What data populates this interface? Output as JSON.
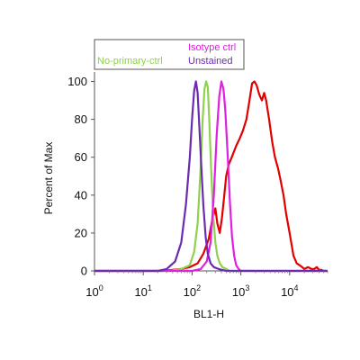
{
  "chart_data": {
    "type": "line",
    "xlabel": "BL1-H",
    "ylabel": "Percent of Max",
    "x_scale": "log",
    "xlim": [
      1,
      60000
    ],
    "ylim": [
      0,
      105
    ],
    "y_ticks": [
      0,
      20,
      40,
      60,
      80,
      100
    ],
    "x_ticks": [
      {
        "value": 1,
        "base": "10",
        "exp": "0"
      },
      {
        "value": 10,
        "base": "10",
        "exp": "1"
      },
      {
        "value": 100,
        "base": "10",
        "exp": "2"
      },
      {
        "value": 1000,
        "base": "10",
        "exp": "3"
      },
      {
        "value": 10000,
        "base": "10",
        "exp": "4"
      }
    ],
    "legend": {
      "placement": "top",
      "entries": [
        {
          "label": "No-primary-ctrl",
          "color": "#8fd14f"
        },
        {
          "label": "Isotype ctrl",
          "color": "#e020e0"
        },
        {
          "label": "Unstained",
          "color": "#6a2bb0"
        }
      ]
    },
    "series": [
      {
        "color": "#e00000",
        "points": [
          [
            1,
            0
          ],
          [
            15,
            0
          ],
          [
            25,
            0
          ],
          [
            40,
            0.5
          ],
          [
            60,
            1
          ],
          [
            90,
            2
          ],
          [
            130,
            4
          ],
          [
            170,
            9
          ],
          [
            220,
            17
          ],
          [
            260,
            27
          ],
          [
            300,
            33
          ],
          [
            330,
            25
          ],
          [
            370,
            20
          ],
          [
            410,
            28
          ],
          [
            450,
            38
          ],
          [
            500,
            50
          ],
          [
            560,
            56
          ],
          [
            650,
            60
          ],
          [
            800,
            66
          ],
          [
            950,
            70
          ],
          [
            1100,
            74
          ],
          [
            1300,
            80
          ],
          [
            1500,
            90
          ],
          [
            1700,
            99
          ],
          [
            1900,
            100
          ],
          [
            2100,
            98
          ],
          [
            2400,
            93
          ],
          [
            2700,
            90
          ],
          [
            3000,
            94
          ],
          [
            3300,
            90
          ],
          [
            3800,
            80
          ],
          [
            4400,
            68
          ],
          [
            5000,
            60
          ],
          [
            5800,
            54
          ],
          [
            6500,
            48
          ],
          [
            7500,
            40
          ],
          [
            8500,
            30
          ],
          [
            10000,
            20
          ],
          [
            12000,
            8
          ],
          [
            14000,
            4
          ],
          [
            16000,
            3
          ],
          [
            18000,
            2
          ],
          [
            20000,
            1
          ],
          [
            24000,
            2
          ],
          [
            28000,
            1
          ],
          [
            32000,
            1
          ],
          [
            36000,
            2
          ],
          [
            40000,
            0.5
          ],
          [
            45000,
            0.5
          ],
          [
            50000,
            0
          ],
          [
            55000,
            0
          ]
        ]
      },
      {
        "name": "No-primary-ctrl",
        "color": "#8fd14f",
        "points": [
          [
            1,
            0
          ],
          [
            35,
            0
          ],
          [
            60,
            1
          ],
          [
            90,
            3
          ],
          [
            110,
            10
          ],
          [
            130,
            25
          ],
          [
            150,
            55
          ],
          [
            165,
            80
          ],
          [
            180,
            96
          ],
          [
            195,
            100
          ],
          [
            210,
            97
          ],
          [
            225,
            80
          ],
          [
            245,
            55
          ],
          [
            270,
            30
          ],
          [
            300,
            15
          ],
          [
            330,
            8
          ],
          [
            370,
            4
          ],
          [
            420,
            2
          ],
          [
            500,
            1
          ],
          [
            600,
            0
          ],
          [
            60000,
            0
          ]
        ]
      },
      {
        "name": "Isotype ctrl",
        "color": "#e020e0",
        "points": [
          [
            1,
            0
          ],
          [
            50,
            0
          ],
          [
            100,
            0
          ],
          [
            150,
            1
          ],
          [
            200,
            5
          ],
          [
            240,
            15
          ],
          [
            280,
            40
          ],
          [
            320,
            72
          ],
          [
            360,
            92
          ],
          [
            400,
            100
          ],
          [
            440,
            96
          ],
          [
            480,
            85
          ],
          [
            540,
            60
          ],
          [
            600,
            35
          ],
          [
            660,
            18
          ],
          [
            730,
            8
          ],
          [
            800,
            3
          ],
          [
            900,
            1
          ],
          [
            1000,
            0
          ],
          [
            60000,
            0
          ]
        ]
      },
      {
        "name": "Unstained",
        "color": "#6a2bb0",
        "points": [
          [
            1,
            0
          ],
          [
            20,
            0
          ],
          [
            30,
            1
          ],
          [
            45,
            5
          ],
          [
            60,
            15
          ],
          [
            75,
            35
          ],
          [
            90,
            60
          ],
          [
            100,
            80
          ],
          [
            110,
            95
          ],
          [
            120,
            100
          ],
          [
            130,
            94
          ],
          [
            140,
            78
          ],
          [
            155,
            55
          ],
          [
            170,
            35
          ],
          [
            190,
            18
          ],
          [
            210,
            9
          ],
          [
            240,
            4
          ],
          [
            280,
            2
          ],
          [
            350,
            1
          ],
          [
            500,
            0
          ],
          [
            60000,
            0
          ]
        ]
      }
    ]
  }
}
